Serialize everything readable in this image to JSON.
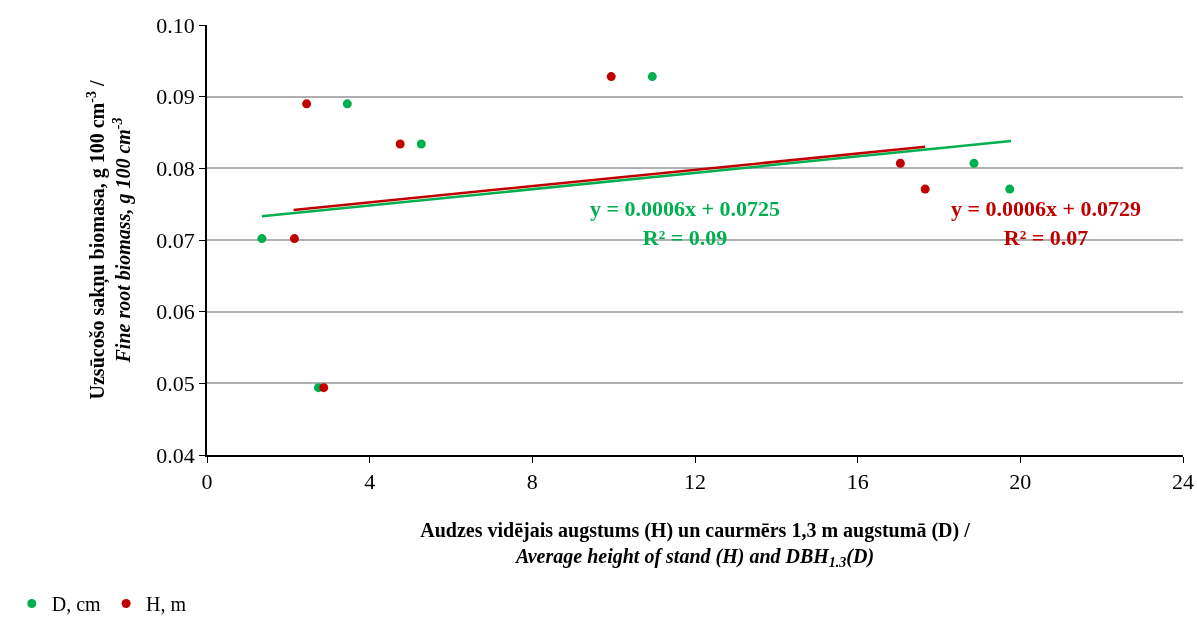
{
  "chart_data": {
    "type": "scatter",
    "xlabel": "Audzes vidējais augstums (H) un caurmērs 1,3 m augstumā (D) /\nAverage height of stand (H) and DBH$_{1.3}$(D)",
    "ylabel": "Uzsūcošo sakņu biomasa, g 100 cm$^{-3}$ /\nFine root biomass, g 100 cm$^{-3}$",
    "xlim": [
      0,
      24
    ],
    "xticks": [
      0,
      4,
      8,
      12,
      16,
      20,
      24
    ],
    "ylim": [
      0.04,
      0.1
    ],
    "yticks": [
      {
        "value": 0.04,
        "label": "0.04"
      },
      {
        "value": 0.05,
        "label": "0.05"
      },
      {
        "value": 0.06,
        "label": "0.06"
      },
      {
        "value": 0.07,
        "label": "0.07"
      },
      {
        "value": 0.08,
        "label": "0.08"
      },
      {
        "value": 0.09,
        "label": "0.09"
      },
      {
        "value": 0.1,
        "label": "0.10"
      }
    ],
    "grid": "y",
    "legend": "bottom left",
    "series": [
      {
        "name": "D, cm",
        "color": "#00b050",
        "x": [
          1.35,
          3.45,
          5.27,
          10.95,
          2.74,
          18.86,
          19.74
        ],
        "values": [
          0.0702,
          0.089,
          0.0834,
          0.0928,
          0.0494,
          0.0807,
          0.0771
        ]
      },
      {
        "name": "H, m",
        "color": "#c00000",
        "x": [
          2.15,
          2.45,
          4.75,
          9.94,
          2.87,
          17.05,
          17.66
        ],
        "values": [
          0.0702,
          0.089,
          0.0834,
          0.0928,
          0.0494,
          0.0807,
          0.0771
        ]
      },
      {
        "type": "line",
        "color": "#00b050",
        "x": [
          1.35,
          19.77
        ],
        "values": [
          0.0733,
          0.0838
        ]
      },
      {
        "type": "line",
        "color": "#c00000",
        "x": [
          2.13,
          17.66
        ],
        "values": [
          0.0742,
          0.083
        ]
      }
    ],
    "annotations": [
      "y = 0.0006x + 0.0725\nR² = 0.09",
      "y = 0.0006x + 0.0729\nR² = 0.07"
    ]
  }
}
